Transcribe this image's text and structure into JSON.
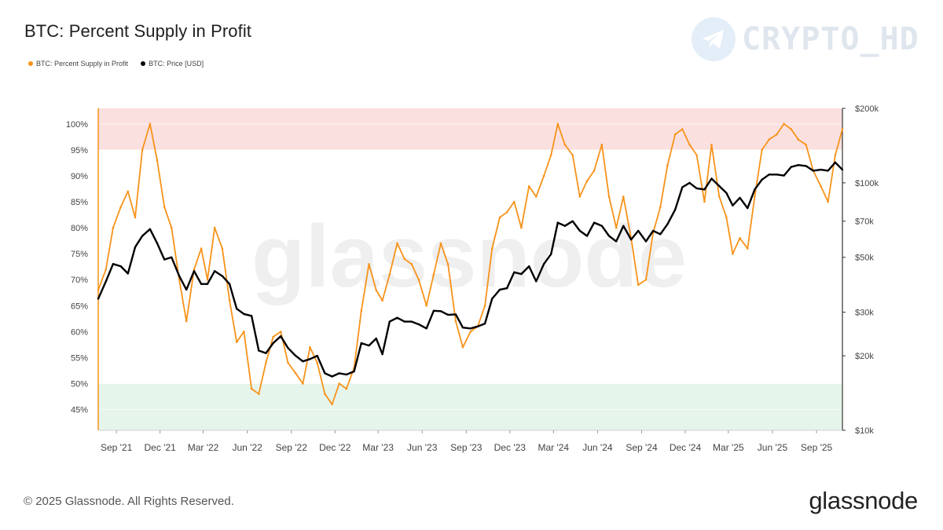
{
  "title": "BTC: Percent Supply in Profit",
  "legend": [
    {
      "label": "BTC: Percent Supply in Profit",
      "color": "#f7931a"
    },
    {
      "label": "BTC: Price [USD]",
      "color": "#000000"
    }
  ],
  "watermark_text": "CRYPTO_HD",
  "center_watermark": "glassnode",
  "footer": "© 2025 Glassnode. All Rights Reserved.",
  "brand": "glassnode",
  "chart_data": {
    "type": "line",
    "title": "BTC: Percent Supply in Profit",
    "x_tick_labels": [
      "Sep '21",
      "Dec '21",
      "Mar '22",
      "Jun '22",
      "Sep '22",
      "Dec '22",
      "Mar '23",
      "Jun '23",
      "Sep '23",
      "Dec '23",
      "Mar '24",
      "Jun '24",
      "Sep '24",
      "Dec '24",
      "Mar '25",
      "Jun '25",
      "Sep '25"
    ],
    "x_range": [
      "2021-07-25",
      "2025-10-25"
    ],
    "y_left": {
      "ticks": [
        "100%",
        "95%",
        "90%",
        "85%",
        "80%",
        "75%",
        "70%",
        "65%",
        "60%",
        "55%",
        "50%",
        "45%"
      ],
      "range": [
        41,
        103
      ]
    },
    "y_right": {
      "scale": "log",
      "ticks": [
        "$200k",
        "$100k",
        "$70k",
        "$50k",
        "$30k",
        "$20k",
        "$10k"
      ],
      "range": [
        10000,
        200000
      ]
    },
    "bands": [
      {
        "from": 95,
        "to": 103,
        "color": "#fbe0e0",
        "meaning": "high"
      },
      {
        "from": 41,
        "to": 50,
        "color": "#e6f5ec",
        "meaning": "low"
      }
    ],
    "series": [
      {
        "name": "BTC: Percent Supply in Profit",
        "color": "#f7931a",
        "x": [
          "2021-07-25",
          "2021-08-10",
          "2021-08-25",
          "2021-09-10",
          "2021-09-25",
          "2021-10-10",
          "2021-10-25",
          "2021-11-10",
          "2021-11-25",
          "2021-12-10",
          "2021-12-25",
          "2022-01-10",
          "2022-01-25",
          "2022-02-10",
          "2022-02-25",
          "2022-03-10",
          "2022-03-25",
          "2022-04-10",
          "2022-04-25",
          "2022-05-10",
          "2022-05-25",
          "2022-06-10",
          "2022-06-25",
          "2022-07-10",
          "2022-07-25",
          "2022-08-10",
          "2022-08-25",
          "2022-09-10",
          "2022-09-25",
          "2022-10-10",
          "2022-10-25",
          "2022-11-10",
          "2022-11-25",
          "2022-12-10",
          "2022-12-25",
          "2023-01-10",
          "2023-01-25",
          "2023-02-10",
          "2023-02-25",
          "2023-03-10",
          "2023-03-25",
          "2023-04-10",
          "2023-04-25",
          "2023-05-10",
          "2023-05-25",
          "2023-06-10",
          "2023-06-25",
          "2023-07-10",
          "2023-07-25",
          "2023-08-10",
          "2023-08-25",
          "2023-09-10",
          "2023-09-25",
          "2023-10-10",
          "2023-10-25",
          "2023-11-10",
          "2023-11-25",
          "2023-12-10",
          "2023-12-25",
          "2024-01-10",
          "2024-01-25",
          "2024-02-10",
          "2024-02-25",
          "2024-03-10",
          "2024-03-25",
          "2024-04-10",
          "2024-04-25",
          "2024-05-10",
          "2024-05-25",
          "2024-06-10",
          "2024-06-25",
          "2024-07-10",
          "2024-07-25",
          "2024-08-10",
          "2024-08-25",
          "2024-09-10",
          "2024-09-25",
          "2024-10-10",
          "2024-10-25",
          "2024-11-10",
          "2024-11-25",
          "2024-12-10",
          "2024-12-25",
          "2025-01-10",
          "2025-01-25",
          "2025-02-10",
          "2025-02-25",
          "2025-03-10",
          "2025-03-25",
          "2025-04-10",
          "2025-04-25",
          "2025-05-10",
          "2025-05-25",
          "2025-06-10",
          "2025-06-25",
          "2025-07-10",
          "2025-07-25",
          "2025-08-10",
          "2025-08-25",
          "2025-09-10",
          "2025-09-25",
          "2025-10-10",
          "2025-10-25"
        ],
        "values": [
          68,
          72,
          80,
          84,
          87,
          82,
          95,
          100,
          93,
          84,
          80,
          70,
          62,
          72,
          76,
          70,
          80,
          76,
          66,
          58,
          60,
          49,
          48,
          54,
          59,
          60,
          54,
          52,
          50,
          57,
          54,
          48,
          46,
          50,
          49,
          53,
          64,
          73,
          68,
          66,
          71,
          77,
          74,
          73,
          70,
          65,
          71,
          77,
          73,
          62,
          57,
          60,
          61,
          65,
          76,
          82,
          83,
          85,
          80,
          88,
          86,
          90,
          94,
          100,
          96,
          94,
          86,
          89,
          91,
          96,
          86,
          80,
          86,
          78,
          69,
          70,
          79,
          84,
          92,
          98,
          99,
          96,
          94,
          85,
          96,
          86,
          82,
          75,
          78,
          76,
          86,
          95,
          97,
          98,
          100,
          99,
          97,
          96,
          91,
          88,
          85,
          94,
          99
        ]
      },
      {
        "name": "BTC: Price [USD]",
        "color": "#000000",
        "x": [
          "2021-07-25",
          "2021-08-10",
          "2021-08-25",
          "2021-09-10",
          "2021-09-25",
          "2021-10-10",
          "2021-10-25",
          "2021-11-10",
          "2021-11-25",
          "2021-12-10",
          "2021-12-25",
          "2022-01-10",
          "2022-01-25",
          "2022-02-10",
          "2022-02-25",
          "2022-03-10",
          "2022-03-25",
          "2022-04-10",
          "2022-04-25",
          "2022-05-10",
          "2022-05-25",
          "2022-06-10",
          "2022-06-25",
          "2022-07-10",
          "2022-07-25",
          "2022-08-10",
          "2022-08-25",
          "2022-09-10",
          "2022-09-25",
          "2022-10-10",
          "2022-10-25",
          "2022-11-10",
          "2022-11-25",
          "2022-12-10",
          "2022-12-25",
          "2023-01-10",
          "2023-01-25",
          "2023-02-10",
          "2023-02-25",
          "2023-03-10",
          "2023-03-25",
          "2023-04-10",
          "2023-04-25",
          "2023-05-10",
          "2023-05-25",
          "2023-06-10",
          "2023-06-25",
          "2023-07-10",
          "2023-07-25",
          "2023-08-10",
          "2023-08-25",
          "2023-09-10",
          "2023-09-25",
          "2023-10-10",
          "2023-10-25",
          "2023-11-10",
          "2023-11-25",
          "2023-12-10",
          "2023-12-25",
          "2024-01-10",
          "2024-01-25",
          "2024-02-10",
          "2024-02-25",
          "2024-03-10",
          "2024-03-25",
          "2024-04-10",
          "2024-04-25",
          "2024-05-10",
          "2024-05-25",
          "2024-06-10",
          "2024-06-25",
          "2024-07-10",
          "2024-07-25",
          "2024-08-10",
          "2024-08-25",
          "2024-09-10",
          "2024-09-25",
          "2024-10-10",
          "2024-10-25",
          "2024-11-10",
          "2024-11-25",
          "2024-12-10",
          "2024-12-25",
          "2025-01-10",
          "2025-01-25",
          "2025-02-10",
          "2025-02-25",
          "2025-03-10",
          "2025-03-25",
          "2025-04-10",
          "2025-04-25",
          "2025-05-10",
          "2025-05-25",
          "2025-06-10",
          "2025-06-25",
          "2025-07-10",
          "2025-07-25",
          "2025-08-10",
          "2025-08-25",
          "2025-09-10",
          "2025-09-25",
          "2025-10-10",
          "2025-10-25"
        ],
        "values": [
          34000,
          40000,
          47000,
          46000,
          43000,
          55000,
          61000,
          65000,
          57000,
          49000,
          50000,
          42000,
          37000,
          44000,
          39000,
          39000,
          44000,
          42000,
          39000,
          31000,
          29500,
          29000,
          21000,
          20500,
          22500,
          24000,
          21500,
          20000,
          19000,
          19400,
          20000,
          17000,
          16500,
          17000,
          16800,
          17300,
          22500,
          22000,
          23500,
          20300,
          27500,
          28500,
          27500,
          27500,
          26800,
          25800,
          30400,
          30300,
          29300,
          29400,
          26000,
          25800,
          26300,
          27000,
          34000,
          37000,
          37500,
          43500,
          42800,
          46000,
          40000,
          47000,
          51500,
          69000,
          67000,
          70000,
          64000,
          61000,
          69000,
          67000,
          61000,
          58000,
          67000,
          59000,
          64000,
          58000,
          64000,
          62000,
          68000,
          78000,
          96000,
          100000,
          95000,
          94000,
          104000,
          97000,
          91000,
          81000,
          87000,
          79000,
          94000,
          103000,
          108000,
          108000,
          107000,
          116000,
          118000,
          117000,
          112000,
          113000,
          112000,
          121000,
          113000
        ]
      }
    ]
  }
}
